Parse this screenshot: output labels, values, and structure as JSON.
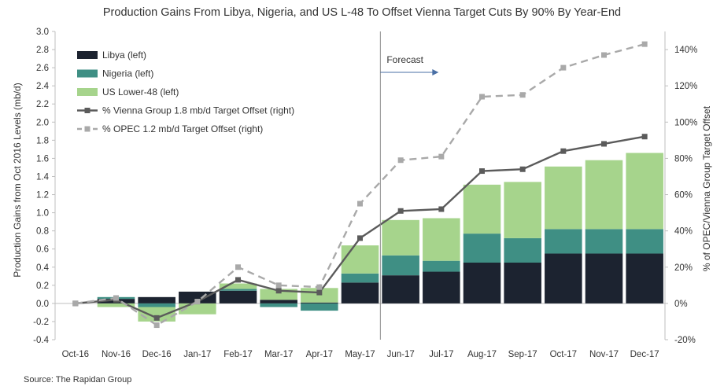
{
  "chart_data": {
    "type": "bar",
    "title": "Production Gains From Libya, Nigeria, and US L-48 To Offset Vienna Target Cuts By 90%  By Year-End",
    "ylabel_left": "Production Gains from Oct 2016 Levels (mb/d)",
    "ylabel_right": "% of OPEC/Vienna Group Target Offset",
    "source": "Source: The Rapidan Group",
    "forecast_label": "Forecast",
    "forecast_after_index": 7,
    "categories": [
      "Oct-16",
      "Nov-16",
      "Dec-16",
      "Jan-17",
      "Feb-17",
      "Mar-17",
      "Apr-17",
      "May-17",
      "Jun-17",
      "Jul-17",
      "Aug-17",
      "Sep-17",
      "Oct-17",
      "Nov-17",
      "Dec-17"
    ],
    "ylim_left": [
      -0.4,
      3.0
    ],
    "left_ticks": [
      "-0.4",
      "-0.2",
      "0.0",
      "0.2",
      "0.4",
      "0.6",
      "0.8",
      "1.0",
      "1.2",
      "1.4",
      "1.6",
      "1.8",
      "2.0",
      "2.2",
      "2.4",
      "2.6",
      "2.8",
      "3.0"
    ],
    "ylim_right": [
      -20,
      150
    ],
    "right_ticks": [
      "-20%",
      "0%",
      "20%",
      "40%",
      "60%",
      "80%",
      "100%",
      "120%",
      "140%"
    ],
    "bar_series": [
      {
        "name": "Libya (left)",
        "color": "#1c2330",
        "values": [
          0,
          0.05,
          0.07,
          0.13,
          0.14,
          0.04,
          0.01,
          0.23,
          0.31,
          0.35,
          0.45,
          0.45,
          0.55,
          0.55,
          0.55
        ]
      },
      {
        "name": "Nigeria (left)",
        "color": "#3f8f84",
        "values": [
          0,
          0.02,
          -0.04,
          0,
          0.02,
          -0.04,
          -0.08,
          0.1,
          0.22,
          0.12,
          0.32,
          0.27,
          0.27,
          0.27,
          0.27
        ]
      },
      {
        "name": "US Lower-48 (left)",
        "color": "#a6d48c",
        "values": [
          0,
          -0.04,
          -0.16,
          -0.12,
          0.06,
          0.12,
          0.16,
          0.31,
          0.39,
          0.47,
          0.54,
          0.62,
          0.69,
          0.76,
          0.84
        ]
      }
    ],
    "line_series": [
      {
        "name": "% Vienna Group 1.8 mb/d Target Offset (right)",
        "color": "#5b5b5b",
        "style": "solid",
        "values": [
          0,
          2,
          -8,
          1,
          13,
          7,
          6,
          36,
          51,
          52,
          73,
          74,
          84,
          88,
          92
        ]
      },
      {
        "name": "% OPEC 1.2 mb/d Target Offset (right)",
        "color": "#a9a9a9",
        "style": "dashed",
        "values": [
          0,
          3,
          -12,
          1,
          20,
          10,
          9,
          55,
          79,
          81,
          114,
          115,
          130,
          137,
          143
        ]
      }
    ],
    "grid": false,
    "legend_position": "top-left"
  }
}
